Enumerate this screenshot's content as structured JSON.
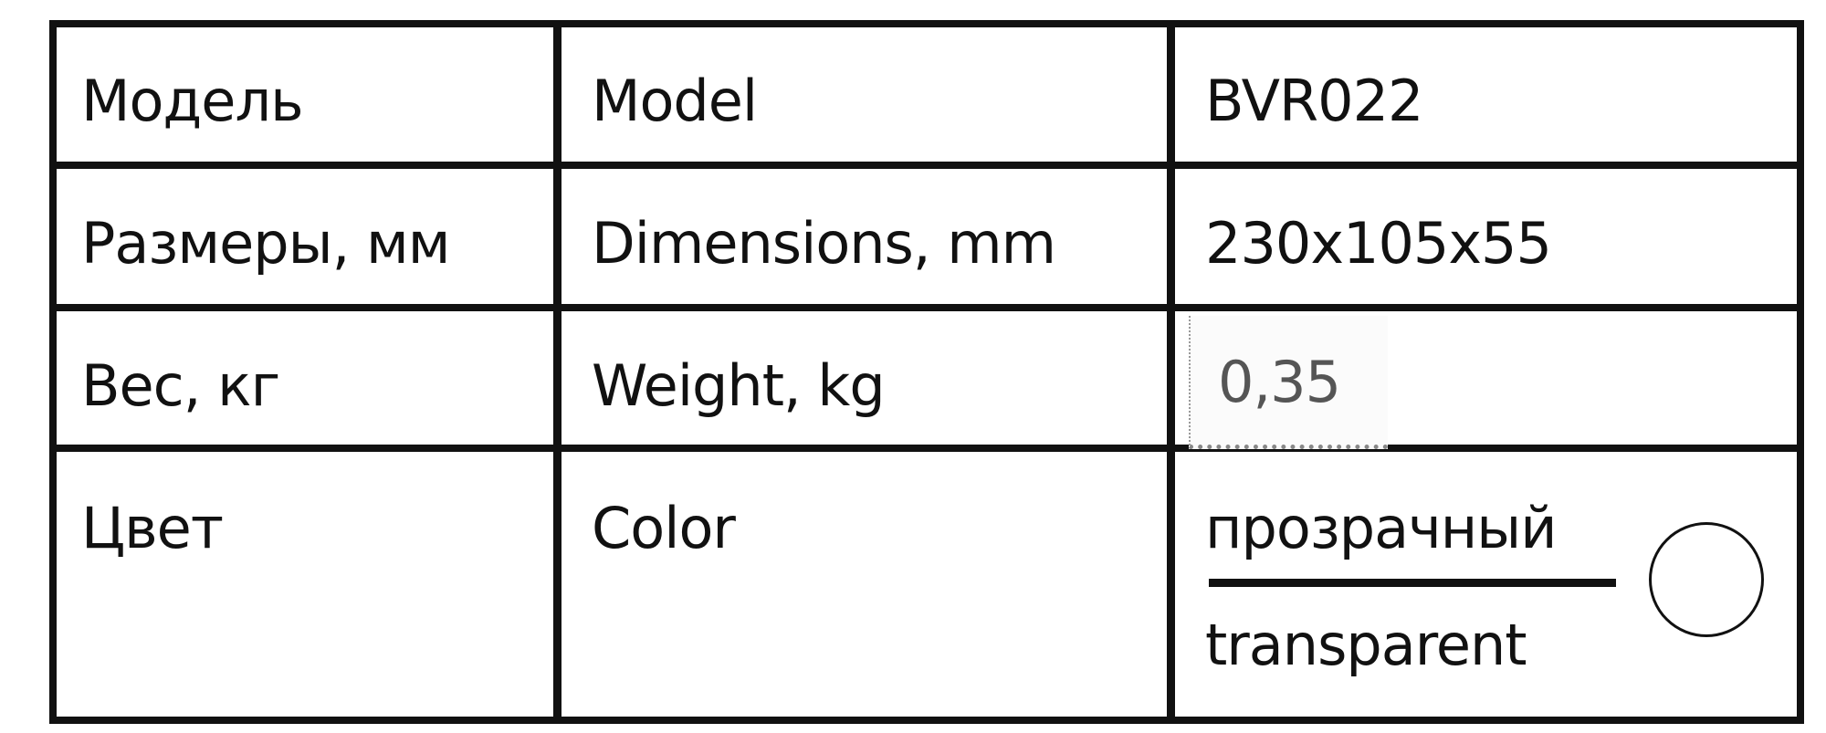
{
  "table": {
    "rows": [
      {
        "ru": "Модель",
        "en": "Model",
        "value": "BVR022"
      },
      {
        "ru": "Размеры, мм",
        "en": "Dimensions, mm",
        "value": "230x105x55"
      },
      {
        "ru": "Вес, кг",
        "en": "Weight, kg",
        "value": "0,35"
      },
      {
        "ru": "Цвет",
        "en": "Color",
        "value_ru": "прозрачный",
        "value_en": "transparent",
        "swatch_icon": "transparent-color-circle"
      }
    ]
  }
}
